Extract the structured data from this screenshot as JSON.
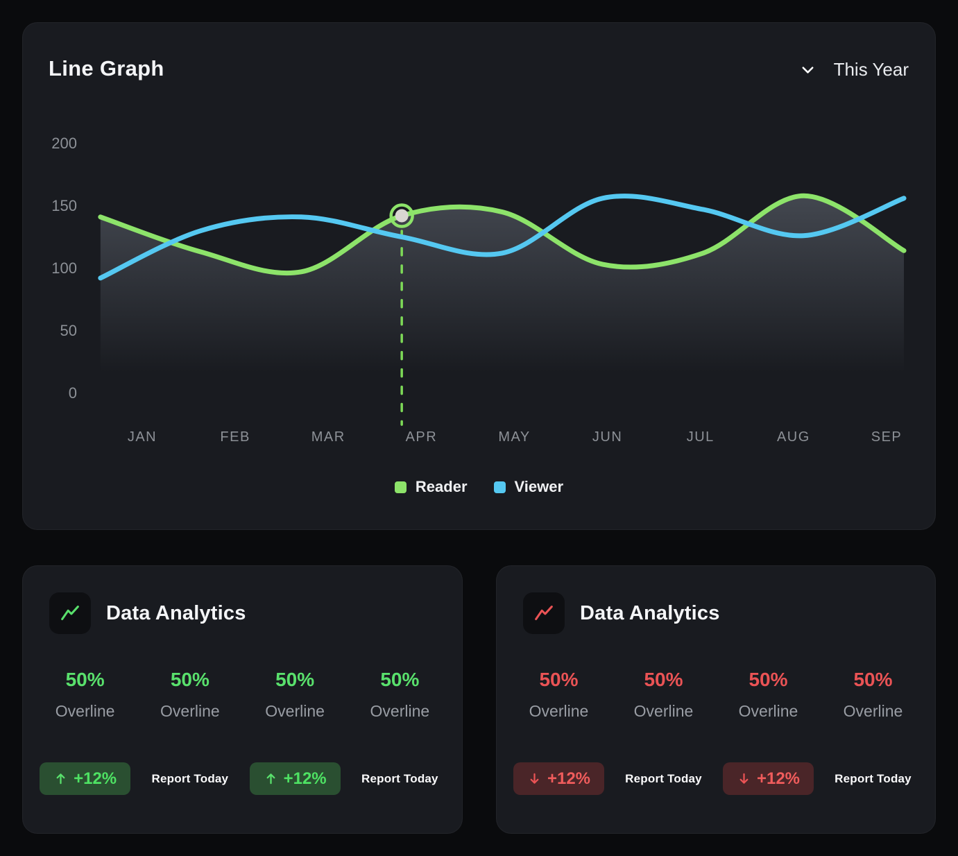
{
  "colors": {
    "page_bg": "#0a0b0d",
    "card_bg": "#191b20",
    "reader_green": "#8de36a",
    "viewer_blue": "#55c8f1",
    "accent_green": "#59e06c",
    "accent_red": "#ea5355"
  },
  "line_graph": {
    "title": "Line Graph",
    "period_label": "This Year"
  },
  "chart_data": {
    "type": "line",
    "x": [
      "JAN",
      "FEB",
      "MAR",
      "APR",
      "MAY",
      "JUN",
      "JUL",
      "AUG",
      "SEP"
    ],
    "series": [
      {
        "name": "Reader",
        "color": "#8de36a",
        "values": [
          141,
          113,
          97,
          142,
          145,
          103,
          112,
          158,
          114
        ],
        "area_fill": true
      },
      {
        "name": "Viewer",
        "color": "#55c8f1",
        "values": [
          92,
          130,
          141,
          125,
          112,
          156,
          147,
          126,
          156
        ]
      }
    ],
    "highlight": {
      "series": "Reader",
      "x": "APR"
    },
    "ylim": [
      0,
      200
    ],
    "y_ticks": [
      200,
      150,
      100,
      50,
      0
    ],
    "legend_position": "bottom",
    "grid": false
  },
  "analytics_cards": [
    {
      "title": "Data Analytics",
      "theme": "green",
      "icon": "trend-up-line-icon",
      "stats": [
        {
          "value": "50%",
          "label": "Overline"
        },
        {
          "value": "50%",
          "label": "Overline"
        },
        {
          "value": "50%",
          "label": "Overline"
        },
        {
          "value": "50%",
          "label": "Overline"
        }
      ],
      "actions": [
        {
          "type": "badge",
          "text": "+12%",
          "direction": "up"
        },
        {
          "type": "text",
          "text": "Report Today"
        },
        {
          "type": "badge",
          "text": "+12%",
          "direction": "up"
        },
        {
          "type": "text",
          "text": "Report Today"
        }
      ]
    },
    {
      "title": "Data Analytics",
      "theme": "red",
      "icon": "trend-up-line-icon",
      "stats": [
        {
          "value": "50%",
          "label": "Overline"
        },
        {
          "value": "50%",
          "label": "Overline"
        },
        {
          "value": "50%",
          "label": "Overline"
        },
        {
          "value": "50%",
          "label": "Overline"
        }
      ],
      "actions": [
        {
          "type": "badge",
          "text": "+12%",
          "direction": "down"
        },
        {
          "type": "text",
          "text": "Report Today"
        },
        {
          "type": "badge",
          "text": "+12%",
          "direction": "down"
        },
        {
          "type": "text",
          "text": "Report Today"
        }
      ]
    }
  ]
}
